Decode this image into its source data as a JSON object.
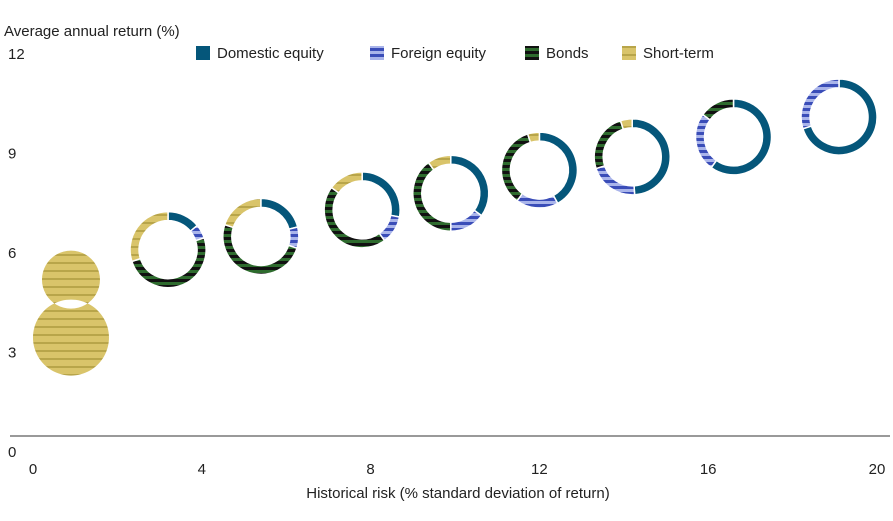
{
  "chart_data": {
    "type": "scatter",
    "subtype": "donut-scatter",
    "ylabel": "Average annual return (%)",
    "xlabel": "Historical risk (% standard deviation of return)",
    "xlim": [
      0,
      20
    ],
    "ylim": [
      0,
      12
    ],
    "xticks": [
      "0",
      "4",
      "8",
      "12",
      "16",
      "20"
    ],
    "yticks": [
      "0",
      "3",
      "6",
      "9",
      "12"
    ],
    "grid": false,
    "legend_position": "top",
    "legend": [
      {
        "key": "domestic",
        "label": "Domestic equity",
        "color": "#05567a",
        "pattern": "solid"
      },
      {
        "key": "foreign",
        "label": "Foreign equity",
        "color": "#3a4db8",
        "pattern": "stripes"
      },
      {
        "key": "bonds",
        "label": "Bonds",
        "color": "#2e6b2e",
        "pattern": "stripes"
      },
      {
        "key": "short",
        "label": "Short-term",
        "color": "#d9c46a",
        "pattern": "stripes"
      }
    ],
    "portfolios": [
      {
        "x": 0.9,
        "y": 3.45,
        "mix": {
          "domestic": 0,
          "foreign": 0,
          "bonds": 0,
          "short": 100
        }
      },
      {
        "x": 3.2,
        "y": 6.1,
        "mix": {
          "domestic": 14,
          "foreign": 6,
          "bonds": 50,
          "short": 30
        }
      },
      {
        "x": 5.4,
        "y": 6.5,
        "mix": {
          "domestic": 21,
          "foreign": 9,
          "bonds": 50,
          "short": 20
        }
      },
      {
        "x": 7.8,
        "y": 7.3,
        "mix": {
          "domestic": 28,
          "foreign": 12,
          "bonds": 45,
          "short": 15
        }
      },
      {
        "x": 9.9,
        "y": 7.8,
        "mix": {
          "domestic": 35,
          "foreign": 15,
          "bonds": 40,
          "short": 10
        }
      },
      {
        "x": 12.0,
        "y": 8.5,
        "mix": {
          "domestic": 42,
          "foreign": 18,
          "bonds": 35,
          "short": 5
        }
      },
      {
        "x": 14.2,
        "y": 8.9,
        "mix": {
          "domestic": 49,
          "foreign": 21,
          "bonds": 25,
          "short": 5
        }
      },
      {
        "x": 16.6,
        "y": 9.5,
        "mix": {
          "domestic": 60,
          "foreign": 25,
          "bonds": 15,
          "short": 0
        }
      },
      {
        "x": 19.1,
        "y": 10.1,
        "mix": {
          "domestic": 70,
          "foreign": 30,
          "bonds": 0,
          "short": 0
        }
      }
    ]
  }
}
